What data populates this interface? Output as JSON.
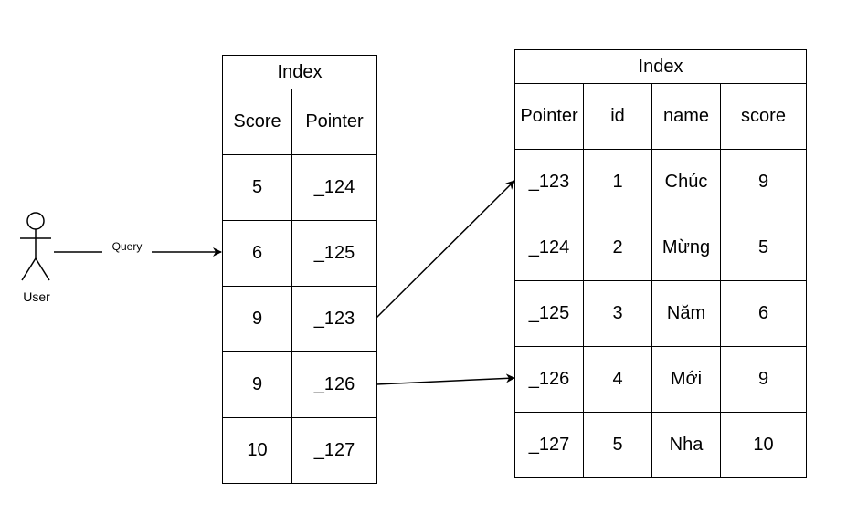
{
  "actor": {
    "label": "User",
    "icon": "stick-figure-icon"
  },
  "query_edge": {
    "label": "Query"
  },
  "index_table": {
    "title": "Index",
    "headers": [
      "Score",
      "Pointer"
    ],
    "rows": [
      [
        "5",
        "_124"
      ],
      [
        "6",
        "_125"
      ],
      [
        "9",
        "_123"
      ],
      [
        "9",
        "_126"
      ],
      [
        "10",
        "_127"
      ]
    ]
  },
  "data_table": {
    "title": "Index",
    "headers": [
      "Pointer",
      "id",
      "name",
      "score"
    ],
    "rows": [
      [
        "_123",
        "1",
        "Chúc",
        "9"
      ],
      [
        "_124",
        "2",
        "Mừng",
        "5"
      ],
      [
        "_125",
        "3",
        "Năm",
        "6"
      ],
      [
        "_126",
        "4",
        "Mới",
        "9"
      ],
      [
        "_127",
        "5",
        "Nha",
        "10"
      ]
    ]
  },
  "colors": {
    "line": "#000000",
    "background": "#ffffff"
  }
}
